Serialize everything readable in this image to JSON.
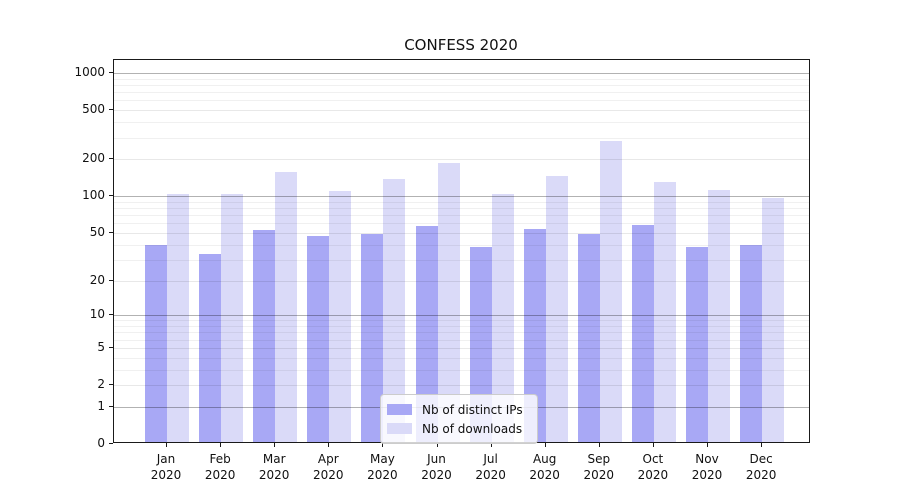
{
  "chart_data": {
    "type": "bar",
    "title": "CONFESS 2020",
    "categories": [
      "Jan 2020",
      "Feb 2020",
      "Mar 2020",
      "Apr 2020",
      "May 2020",
      "Jun 2020",
      "Jul 2020",
      "Aug 2020",
      "Sep 2020",
      "Oct 2020",
      "Nov 2020",
      "Dec 2020"
    ],
    "series": [
      {
        "name": "Nb of distinct IPs",
        "color": "#a8a8f5",
        "values": [
          38,
          32,
          51,
          45,
          47,
          55,
          37,
          52,
          47,
          56,
          37,
          38
        ]
      },
      {
        "name": "Nb of downloads",
        "color": "#dadaf8",
        "values": [
          100,
          100,
          153,
          106,
          132,
          181,
          101,
          141,
          270,
          126,
          109,
          93
        ]
      }
    ],
    "xlabel": "",
    "ylabel": "",
    "yscale": "log1p",
    "ylim": [
      0,
      1275
    ],
    "yticks": [
      0,
      1,
      2,
      5,
      10,
      20,
      50,
      100,
      200,
      500,
      1000
    ],
    "ytick_labels": [
      "0",
      "1",
      "2",
      "5",
      "10",
      "20",
      "50",
      "100",
      "200",
      "500",
      "1000"
    ],
    "minor_gridline_values": [
      3,
      4,
      6,
      7,
      8,
      9,
      30,
      40,
      60,
      70,
      80,
      90,
      300,
      400,
      600,
      700,
      800,
      900
    ],
    "grid": "horizontal",
    "legend_position": "lower center"
  },
  "colors": {
    "series1": "#a8a8f5",
    "series2": "#dadaf8",
    "gridline_major": "#b3b3b3",
    "gridline_minor": "#ededed",
    "axis": "#1a1a1a",
    "background": "#ffffff"
  }
}
